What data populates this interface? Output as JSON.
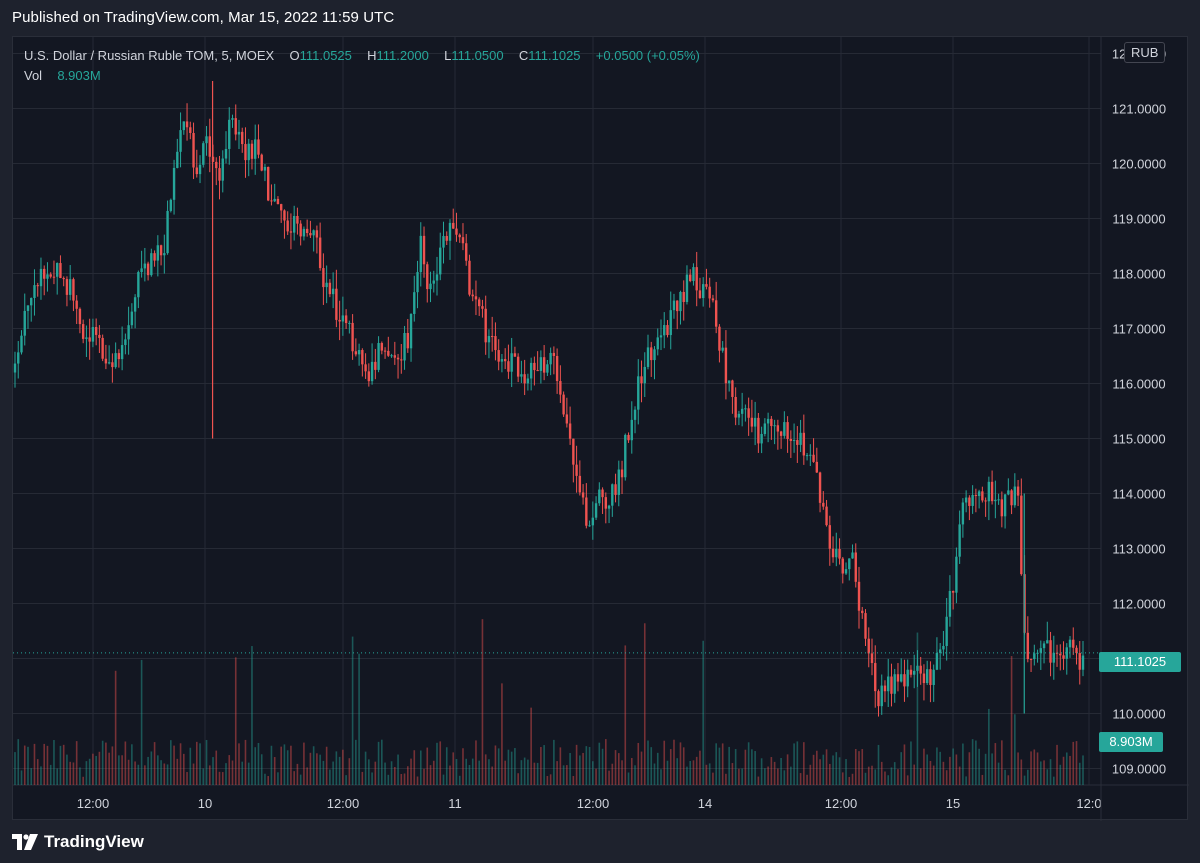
{
  "published": "Published on TradingView.com, Mar 15, 2022 11:59 UTC",
  "legend": {
    "symbol": "U.S. Dollar / Russian Ruble TOM, 5, MOEX",
    "o_label": "O",
    "o_value": "111.0525",
    "h_label": "H",
    "h_value": "111.2000",
    "l_label": "L",
    "l_value": "111.0500",
    "c_label": "C",
    "c_value": "111.1025",
    "change": "+0.0500 (+0.05%)",
    "vol_label": "Vol",
    "vol_value": "8.903M"
  },
  "currency": "RUB",
  "last_price_badge": "111.1025",
  "volume_badge": "8.903M",
  "brand": {
    "name": "TradingView",
    "icon": "tradingview-logo-icon"
  },
  "colors": {
    "up": "#26a69a",
    "down": "#ef5350",
    "background": "#131722",
    "grid": "#262a35",
    "text": "#d1d4dc"
  },
  "chart_data": {
    "type": "candlestick",
    "ylim": [
      108.7,
      122.3
    ],
    "y_ticks": [
      "122.0000",
      "121.0000",
      "120.0000",
      "119.0000",
      "118.0000",
      "117.0000",
      "116.0000",
      "115.0000",
      "114.0000",
      "113.0000",
      "112.0000",
      "111.0000",
      "110.0000",
      "109.0000"
    ],
    "x_ticks": [
      "12:00",
      "10",
      "12:00",
      "11",
      "12:00",
      "14",
      "12:00",
      "15",
      "12:0"
    ],
    "grid": true,
    "last_price": 111.1025,
    "last_volume": "8.903M",
    "price_path": [
      [
        0.0,
        116.2
      ],
      [
        0.01,
        117.5
      ],
      [
        0.025,
        117.9
      ],
      [
        0.035,
        118.1
      ],
      [
        0.05,
        117.8
      ],
      [
        0.06,
        117.0
      ],
      [
        0.075,
        116.8
      ],
      [
        0.09,
        116.2
      ],
      [
        0.1,
        116.6
      ],
      [
        0.115,
        117.8
      ],
      [
        0.13,
        118.2
      ],
      [
        0.14,
        118.5
      ],
      [
        0.15,
        120.3
      ],
      [
        0.16,
        120.8
      ],
      [
        0.17,
        119.9
      ],
      [
        0.18,
        120.5
      ],
      [
        0.19,
        119.8
      ],
      [
        0.2,
        120.7
      ],
      [
        0.215,
        120.3
      ],
      [
        0.23,
        120.2
      ],
      [
        0.24,
        119.2
      ],
      [
        0.255,
        119.0
      ],
      [
        0.27,
        118.9
      ],
      [
        0.28,
        118.6
      ],
      [
        0.29,
        117.9
      ],
      [
        0.3,
        117.4
      ],
      [
        0.31,
        117.0
      ],
      [
        0.32,
        116.6
      ],
      [
        0.33,
        116.2
      ],
      [
        0.34,
        116.5
      ],
      [
        0.35,
        116.3
      ],
      [
        0.36,
        116.5
      ],
      [
        0.37,
        117.0
      ],
      [
        0.38,
        118.5
      ],
      [
        0.39,
        117.6
      ],
      [
        0.4,
        118.5
      ],
      [
        0.41,
        118.8
      ],
      [
        0.42,
        118.3
      ],
      [
        0.43,
        117.5
      ],
      [
        0.44,
        117.0
      ],
      [
        0.45,
        116.5
      ],
      [
        0.46,
        116.3
      ],
      [
        0.47,
        116.4
      ],
      [
        0.48,
        116.1
      ],
      [
        0.49,
        116.3
      ],
      [
        0.5,
        116.5
      ],
      [
        0.51,
        116.0
      ],
      [
        0.52,
        115.0
      ],
      [
        0.53,
        114.0
      ],
      [
        0.535,
        113.5
      ],
      [
        0.545,
        113.9
      ],
      [
        0.555,
        113.8
      ],
      [
        0.565,
        114.2
      ],
      [
        0.575,
        115.2
      ],
      [
        0.585,
        116.2
      ],
      [
        0.595,
        116.5
      ],
      [
        0.605,
        116.9
      ],
      [
        0.615,
        117.2
      ],
      [
        0.625,
        117.6
      ],
      [
        0.635,
        118.0
      ],
      [
        0.645,
        117.6
      ],
      [
        0.655,
        117.3
      ],
      [
        0.665,
        116.3
      ],
      [
        0.675,
        115.6
      ],
      [
        0.685,
        115.3
      ],
      [
        0.695,
        115.1
      ],
      [
        0.705,
        115.2
      ],
      [
        0.715,
        115.1
      ],
      [
        0.725,
        115.2
      ],
      [
        0.735,
        115.1
      ],
      [
        0.745,
        114.6
      ],
      [
        0.755,
        113.8
      ],
      [
        0.765,
        113.0
      ],
      [
        0.775,
        112.7
      ],
      [
        0.785,
        112.9
      ],
      [
        0.79,
        112.0
      ],
      [
        0.8,
        110.8
      ],
      [
        0.81,
        110.3
      ],
      [
        0.82,
        110.5
      ],
      [
        0.83,
        110.6
      ],
      [
        0.84,
        110.9
      ],
      [
        0.85,
        110.7
      ],
      [
        0.86,
        110.6
      ],
      [
        0.87,
        111.5
      ],
      [
        0.88,
        112.6
      ],
      [
        0.885,
        113.8
      ],
      [
        0.895,
        114.0
      ],
      [
        0.905,
        113.9
      ],
      [
        0.915,
        114.0
      ],
      [
        0.925,
        113.7
      ],
      [
        0.935,
        114.0
      ],
      [
        0.94,
        113.8
      ],
      [
        0.945,
        111.3
      ],
      [
        0.955,
        111.0
      ],
      [
        0.965,
        111.2
      ],
      [
        0.975,
        111.0
      ],
      [
        0.985,
        111.1
      ],
      [
        0.99,
        111.2
      ],
      [
        0.995,
        111.0
      ],
      [
        1.0,
        111.1
      ]
    ]
  }
}
